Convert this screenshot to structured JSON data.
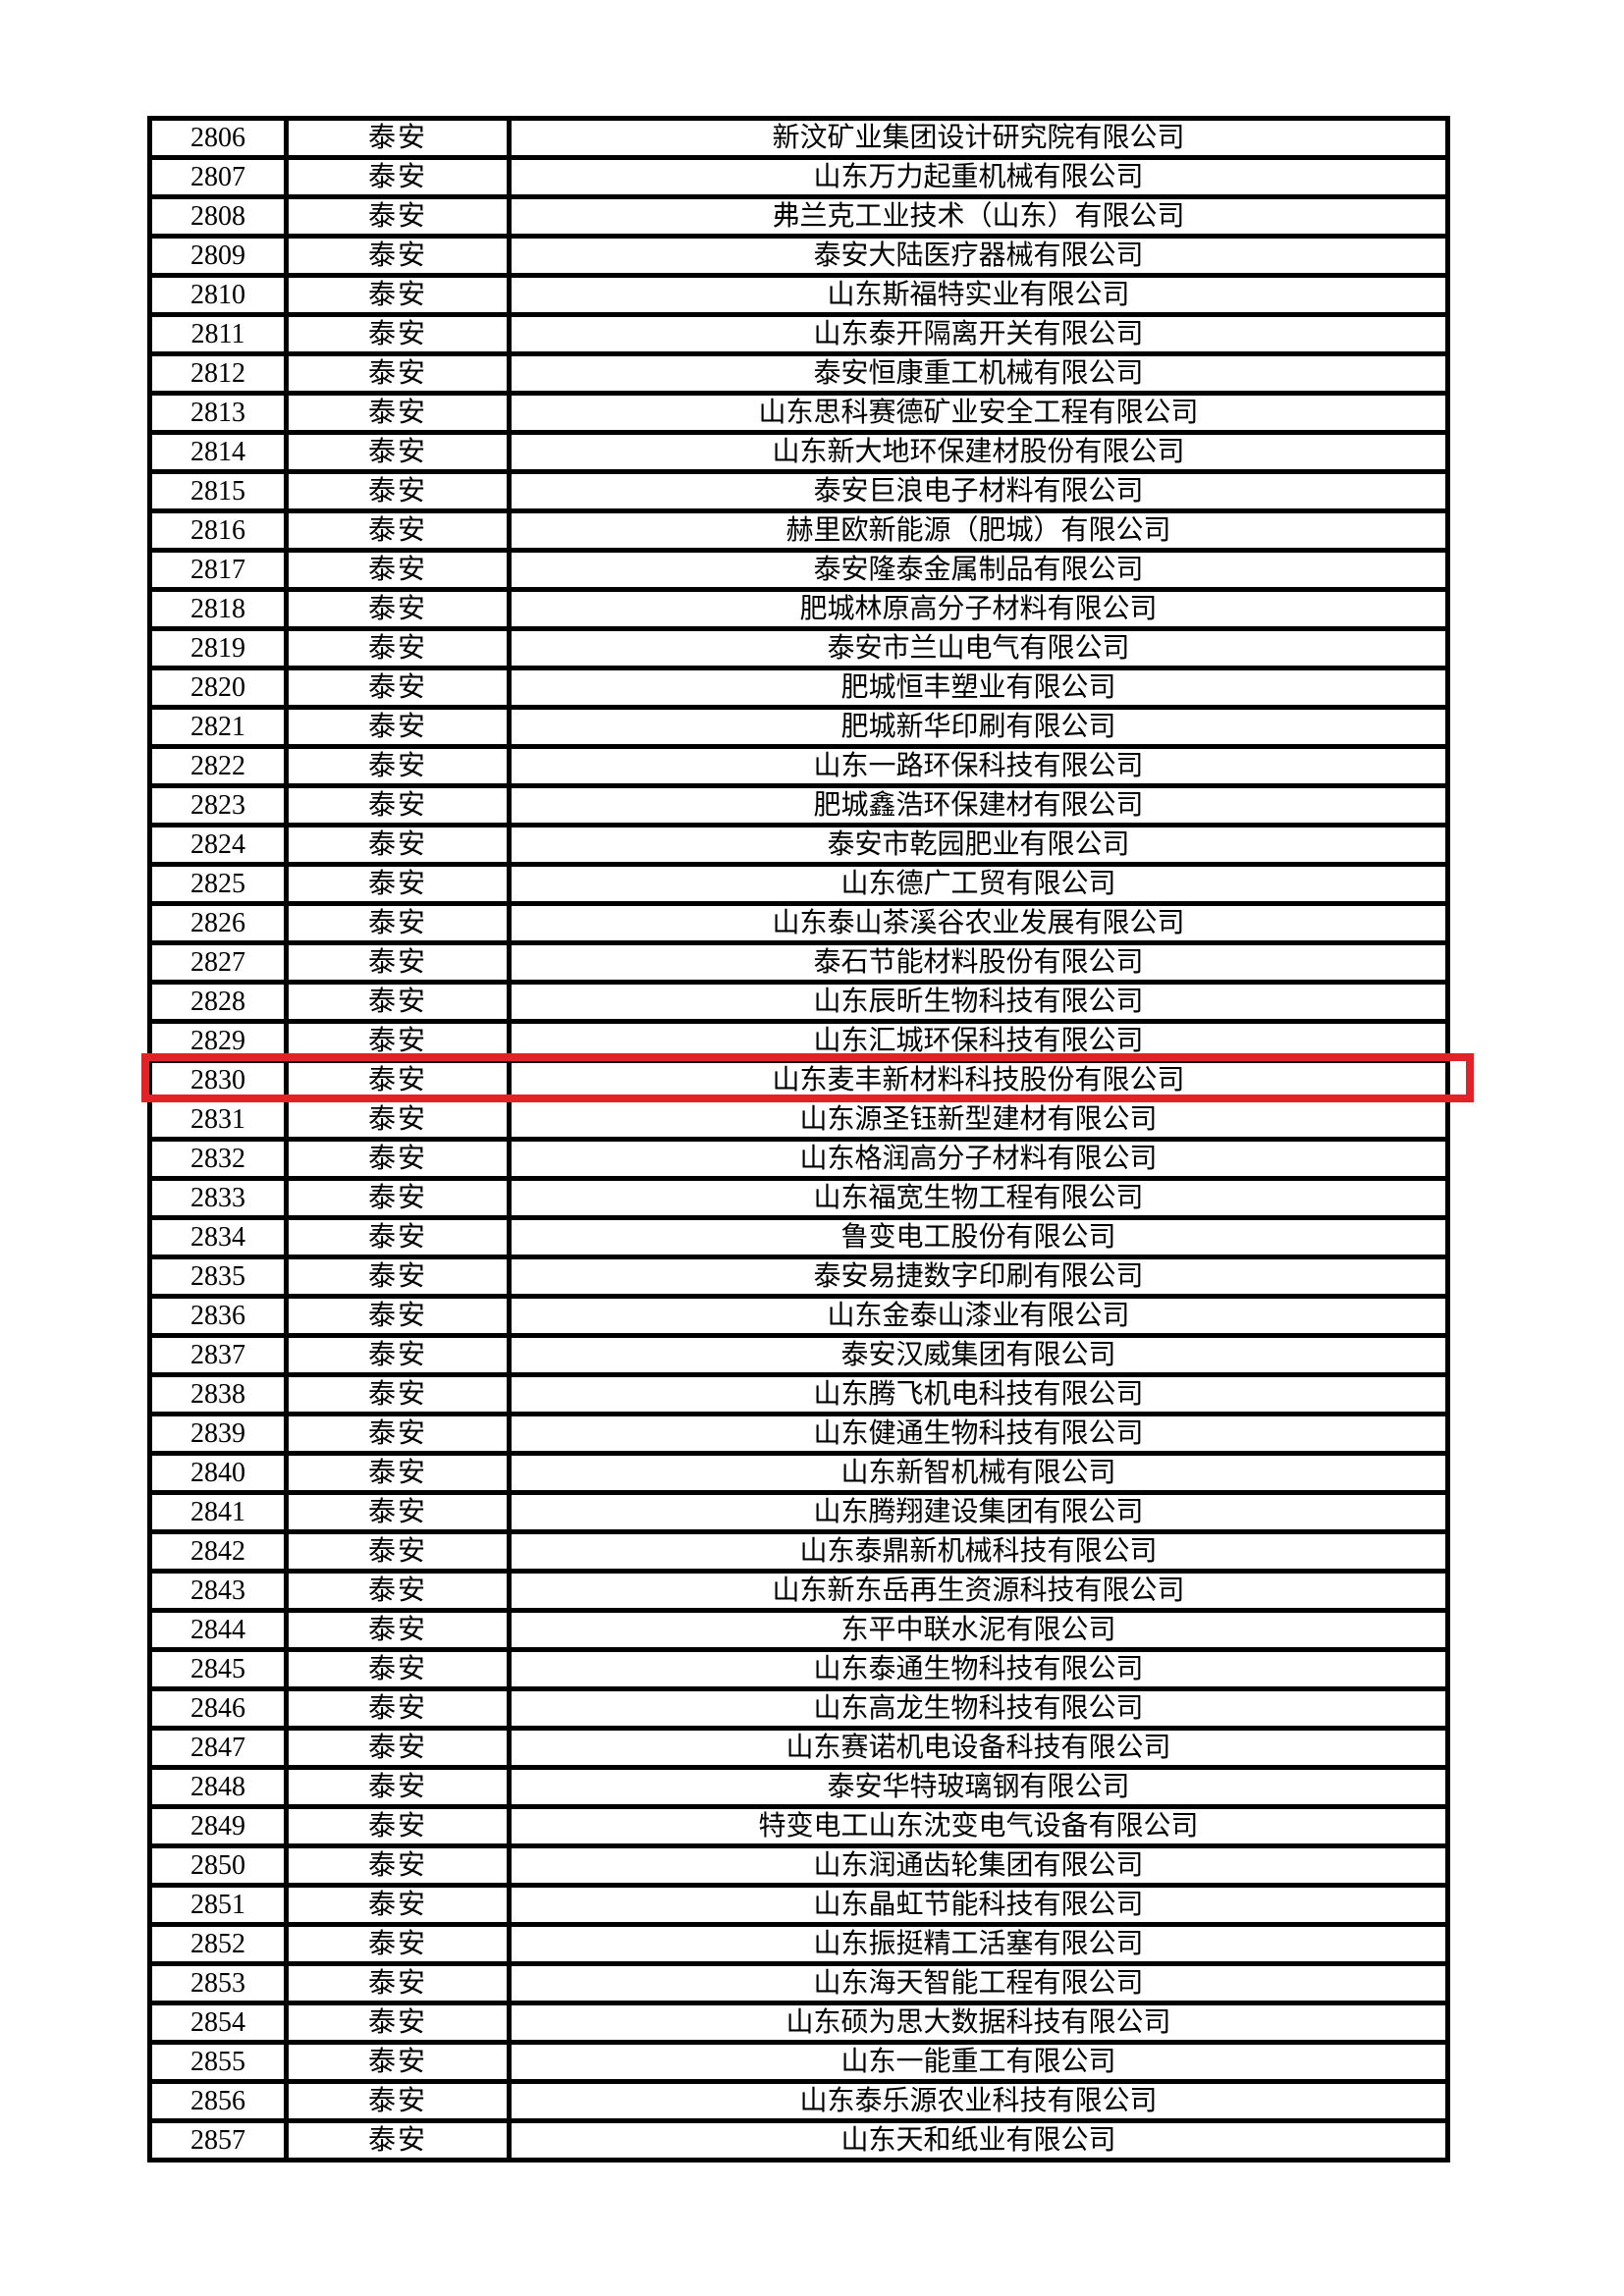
{
  "page": {
    "background": "#ffffff",
    "text_color": "#000000",
    "grid_color": "#000000",
    "highlight_color": "#e32227"
  },
  "table": {
    "highlight": {
      "row_no": "2830"
    },
    "rows": [
      [
        "2806",
        "泰安",
        "新汶矿业集团设计研究院有限公司"
      ],
      [
        "2807",
        "泰安",
        "山东万力起重机械有限公司"
      ],
      [
        "2808",
        "泰安",
        "弗兰克工业技术（山东）有限公司"
      ],
      [
        "2809",
        "泰安",
        "泰安大陆医疗器械有限公司"
      ],
      [
        "2810",
        "泰安",
        "山东斯福特实业有限公司"
      ],
      [
        "2811",
        "泰安",
        "山东泰开隔离开关有限公司"
      ],
      [
        "2812",
        "泰安",
        "泰安恒康重工机械有限公司"
      ],
      [
        "2813",
        "泰安",
        "山东思科赛德矿业安全工程有限公司"
      ],
      [
        "2814",
        "泰安",
        "山东新大地环保建材股份有限公司"
      ],
      [
        "2815",
        "泰安",
        "泰安巨浪电子材料有限公司"
      ],
      [
        "2816",
        "泰安",
        "赫里欧新能源（肥城）有限公司"
      ],
      [
        "2817",
        "泰安",
        "泰安隆泰金属制品有限公司"
      ],
      [
        "2818",
        "泰安",
        "肥城林原高分子材料有限公司"
      ],
      [
        "2819",
        "泰安",
        "泰安市兰山电气有限公司"
      ],
      [
        "2820",
        "泰安",
        "肥城恒丰塑业有限公司"
      ],
      [
        "2821",
        "泰安",
        "肥城新华印刷有限公司"
      ],
      [
        "2822",
        "泰安",
        "山东一路环保科技有限公司"
      ],
      [
        "2823",
        "泰安",
        "肥城鑫浩环保建材有限公司"
      ],
      [
        "2824",
        "泰安",
        "泰安市乾园肥业有限公司"
      ],
      [
        "2825",
        "泰安",
        "山东德广工贸有限公司"
      ],
      [
        "2826",
        "泰安",
        "山东泰山茶溪谷农业发展有限公司"
      ],
      [
        "2827",
        "泰安",
        "泰石节能材料股份有限公司"
      ],
      [
        "2828",
        "泰安",
        "山东辰昕生物科技有限公司"
      ],
      [
        "2829",
        "泰安",
        "山东汇城环保科技有限公司"
      ],
      [
        "2830",
        "泰安",
        "山东麦丰新材料科技股份有限公司"
      ],
      [
        "2831",
        "泰安",
        "山东源圣钰新型建材有限公司"
      ],
      [
        "2832",
        "泰安",
        "山东格润高分子材料有限公司"
      ],
      [
        "2833",
        "泰安",
        "山东福宽生物工程有限公司"
      ],
      [
        "2834",
        "泰安",
        "鲁变电工股份有限公司"
      ],
      [
        "2835",
        "泰安",
        "泰安易捷数字印刷有限公司"
      ],
      [
        "2836",
        "泰安",
        "山东金泰山漆业有限公司"
      ],
      [
        "2837",
        "泰安",
        "泰安汉威集团有限公司"
      ],
      [
        "2838",
        "泰安",
        "山东腾飞机电科技有限公司"
      ],
      [
        "2839",
        "泰安",
        "山东健通生物科技有限公司"
      ],
      [
        "2840",
        "泰安",
        "山东新智机械有限公司"
      ],
      [
        "2841",
        "泰安",
        "山东腾翔建设集团有限公司"
      ],
      [
        "2842",
        "泰安",
        "山东泰鼎新机械科技有限公司"
      ],
      [
        "2843",
        "泰安",
        "山东新东岳再生资源科技有限公司"
      ],
      [
        "2844",
        "泰安",
        "东平中联水泥有限公司"
      ],
      [
        "2845",
        "泰安",
        "山东泰通生物科技有限公司"
      ],
      [
        "2846",
        "泰安",
        "山东高龙生物科技有限公司"
      ],
      [
        "2847",
        "泰安",
        "山东赛诺机电设备科技有限公司"
      ],
      [
        "2848",
        "泰安",
        "泰安华特玻璃钢有限公司"
      ],
      [
        "2849",
        "泰安",
        "特变电工山东沈变电气设备有限公司"
      ],
      [
        "2850",
        "泰安",
        "山东润通齿轮集团有限公司"
      ],
      [
        "2851",
        "泰安",
        "山东晶虹节能科技有限公司"
      ],
      [
        "2852",
        "泰安",
        "山东振挺精工活塞有限公司"
      ],
      [
        "2853",
        "泰安",
        "山东海天智能工程有限公司"
      ],
      [
        "2854",
        "泰安",
        "山东硕为思大数据科技有限公司"
      ],
      [
        "2855",
        "泰安",
        "山东一能重工有限公司"
      ],
      [
        "2856",
        "泰安",
        "山东泰乐源农业科技有限公司"
      ],
      [
        "2857",
        "泰安",
        "山东天和纸业有限公司"
      ]
    ]
  }
}
